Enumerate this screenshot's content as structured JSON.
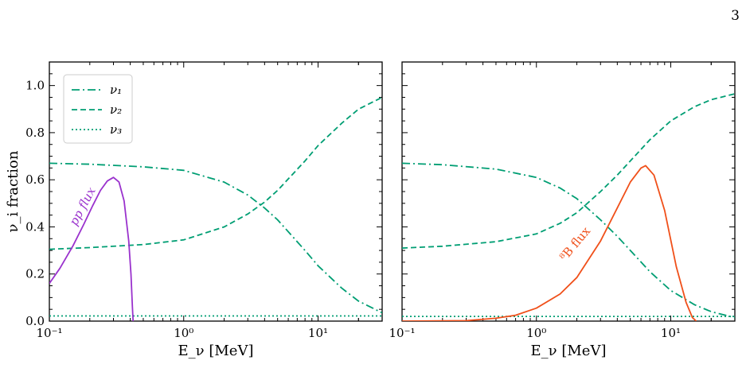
{
  "page_number": "3",
  "colors": {
    "nu1": "#009e73",
    "nu2": "#009e73",
    "nu3": "#009e73",
    "pp_flux": "#9a32cd",
    "b8_flux": "#f0501a",
    "axis": "#000000"
  },
  "chart_data": [
    {
      "type": "line",
      "panel": "left",
      "xlabel": "E_ν [MeV]",
      "ylabel": "ν_i fraction",
      "xscale": "log",
      "xlim": [
        0.1,
        30
      ],
      "ylim": [
        0.0,
        1.1
      ],
      "xticks": [
        "10⁻¹",
        "10⁰",
        "10¹"
      ],
      "yticks": [
        "0.0",
        "0.2",
        "0.4",
        "0.6",
        "0.8",
        "1.0"
      ],
      "legend": {
        "position": "top-left",
        "entries": [
          "ν₁",
          "ν₂",
          "ν₃"
        ]
      },
      "series": [
        {
          "name": "ν₁",
          "style": "dash-dot",
          "x": [
            0.1,
            0.2,
            0.5,
            1,
            2,
            3,
            4,
            5,
            8,
            10,
            15,
            20,
            30
          ],
          "y": [
            0.67,
            0.666,
            0.655,
            0.64,
            0.59,
            0.535,
            0.48,
            0.43,
            0.3,
            0.235,
            0.14,
            0.085,
            0.035
          ]
        },
        {
          "name": "ν₂",
          "style": "dashed",
          "x": [
            0.1,
            0.2,
            0.5,
            1,
            2,
            3,
            4,
            5,
            8,
            10,
            15,
            20,
            30
          ],
          "y": [
            0.305,
            0.312,
            0.325,
            0.345,
            0.4,
            0.455,
            0.505,
            0.555,
            0.68,
            0.745,
            0.84,
            0.9,
            0.95
          ]
        },
        {
          "name": "ν₃",
          "style": "dotted",
          "x": [
            0.1,
            1,
            10,
            30
          ],
          "y": [
            0.022,
            0.022,
            0.022,
            0.022
          ]
        }
      ],
      "flux": {
        "label": "pp flux",
        "x": [
          0.1,
          0.12,
          0.15,
          0.18,
          0.21,
          0.24,
          0.27,
          0.3,
          0.33,
          0.36,
          0.39,
          0.405,
          0.415,
          0.42
        ],
        "y": [
          0.16,
          0.225,
          0.32,
          0.41,
          0.49,
          0.555,
          0.595,
          0.61,
          0.59,
          0.51,
          0.34,
          0.2,
          0.06,
          0.0
        ]
      }
    },
    {
      "type": "line",
      "panel": "right",
      "xlabel": "E_ν [MeV]",
      "ylabel": "",
      "xscale": "log",
      "xlim": [
        0.1,
        30
      ],
      "ylim": [
        0.0,
        1.1
      ],
      "xticks": [
        "10⁻¹",
        "10⁰",
        "10¹"
      ],
      "series": [
        {
          "name": "ν₁",
          "style": "dash-dot",
          "x": [
            0.1,
            0.2,
            0.5,
            1,
            1.5,
            2,
            3,
            4,
            5,
            7,
            10,
            15,
            20,
            30
          ],
          "y": [
            0.67,
            0.664,
            0.645,
            0.61,
            0.565,
            0.52,
            0.43,
            0.36,
            0.3,
            0.21,
            0.13,
            0.07,
            0.04,
            0.015
          ]
        },
        {
          "name": "ν₂",
          "style": "dashed",
          "x": [
            0.1,
            0.2,
            0.5,
            1,
            1.5,
            2,
            3,
            4,
            5,
            7,
            10,
            15,
            20,
            30
          ],
          "y": [
            0.31,
            0.318,
            0.337,
            0.37,
            0.415,
            0.46,
            0.55,
            0.62,
            0.68,
            0.77,
            0.85,
            0.91,
            0.94,
            0.965
          ]
        },
        {
          "name": "ν₃",
          "style": "dotted",
          "x": [
            0.1,
            1,
            10,
            30
          ],
          "y": [
            0.02,
            0.02,
            0.02,
            0.02
          ]
        }
      ],
      "flux": {
        "label": "⁸B flux",
        "x": [
          0.1,
          0.3,
          0.5,
          0.7,
          1.0,
          1.5,
          2.0,
          3.0,
          4.0,
          5.0,
          6.0,
          6.5,
          7.5,
          9.0,
          11.0,
          13.0,
          14.5,
          15.5
        ],
        "y": [
          0.0,
          0.002,
          0.012,
          0.025,
          0.055,
          0.115,
          0.185,
          0.34,
          0.48,
          0.59,
          0.65,
          0.66,
          0.62,
          0.47,
          0.23,
          0.08,
          0.015,
          0.0
        ]
      }
    }
  ]
}
